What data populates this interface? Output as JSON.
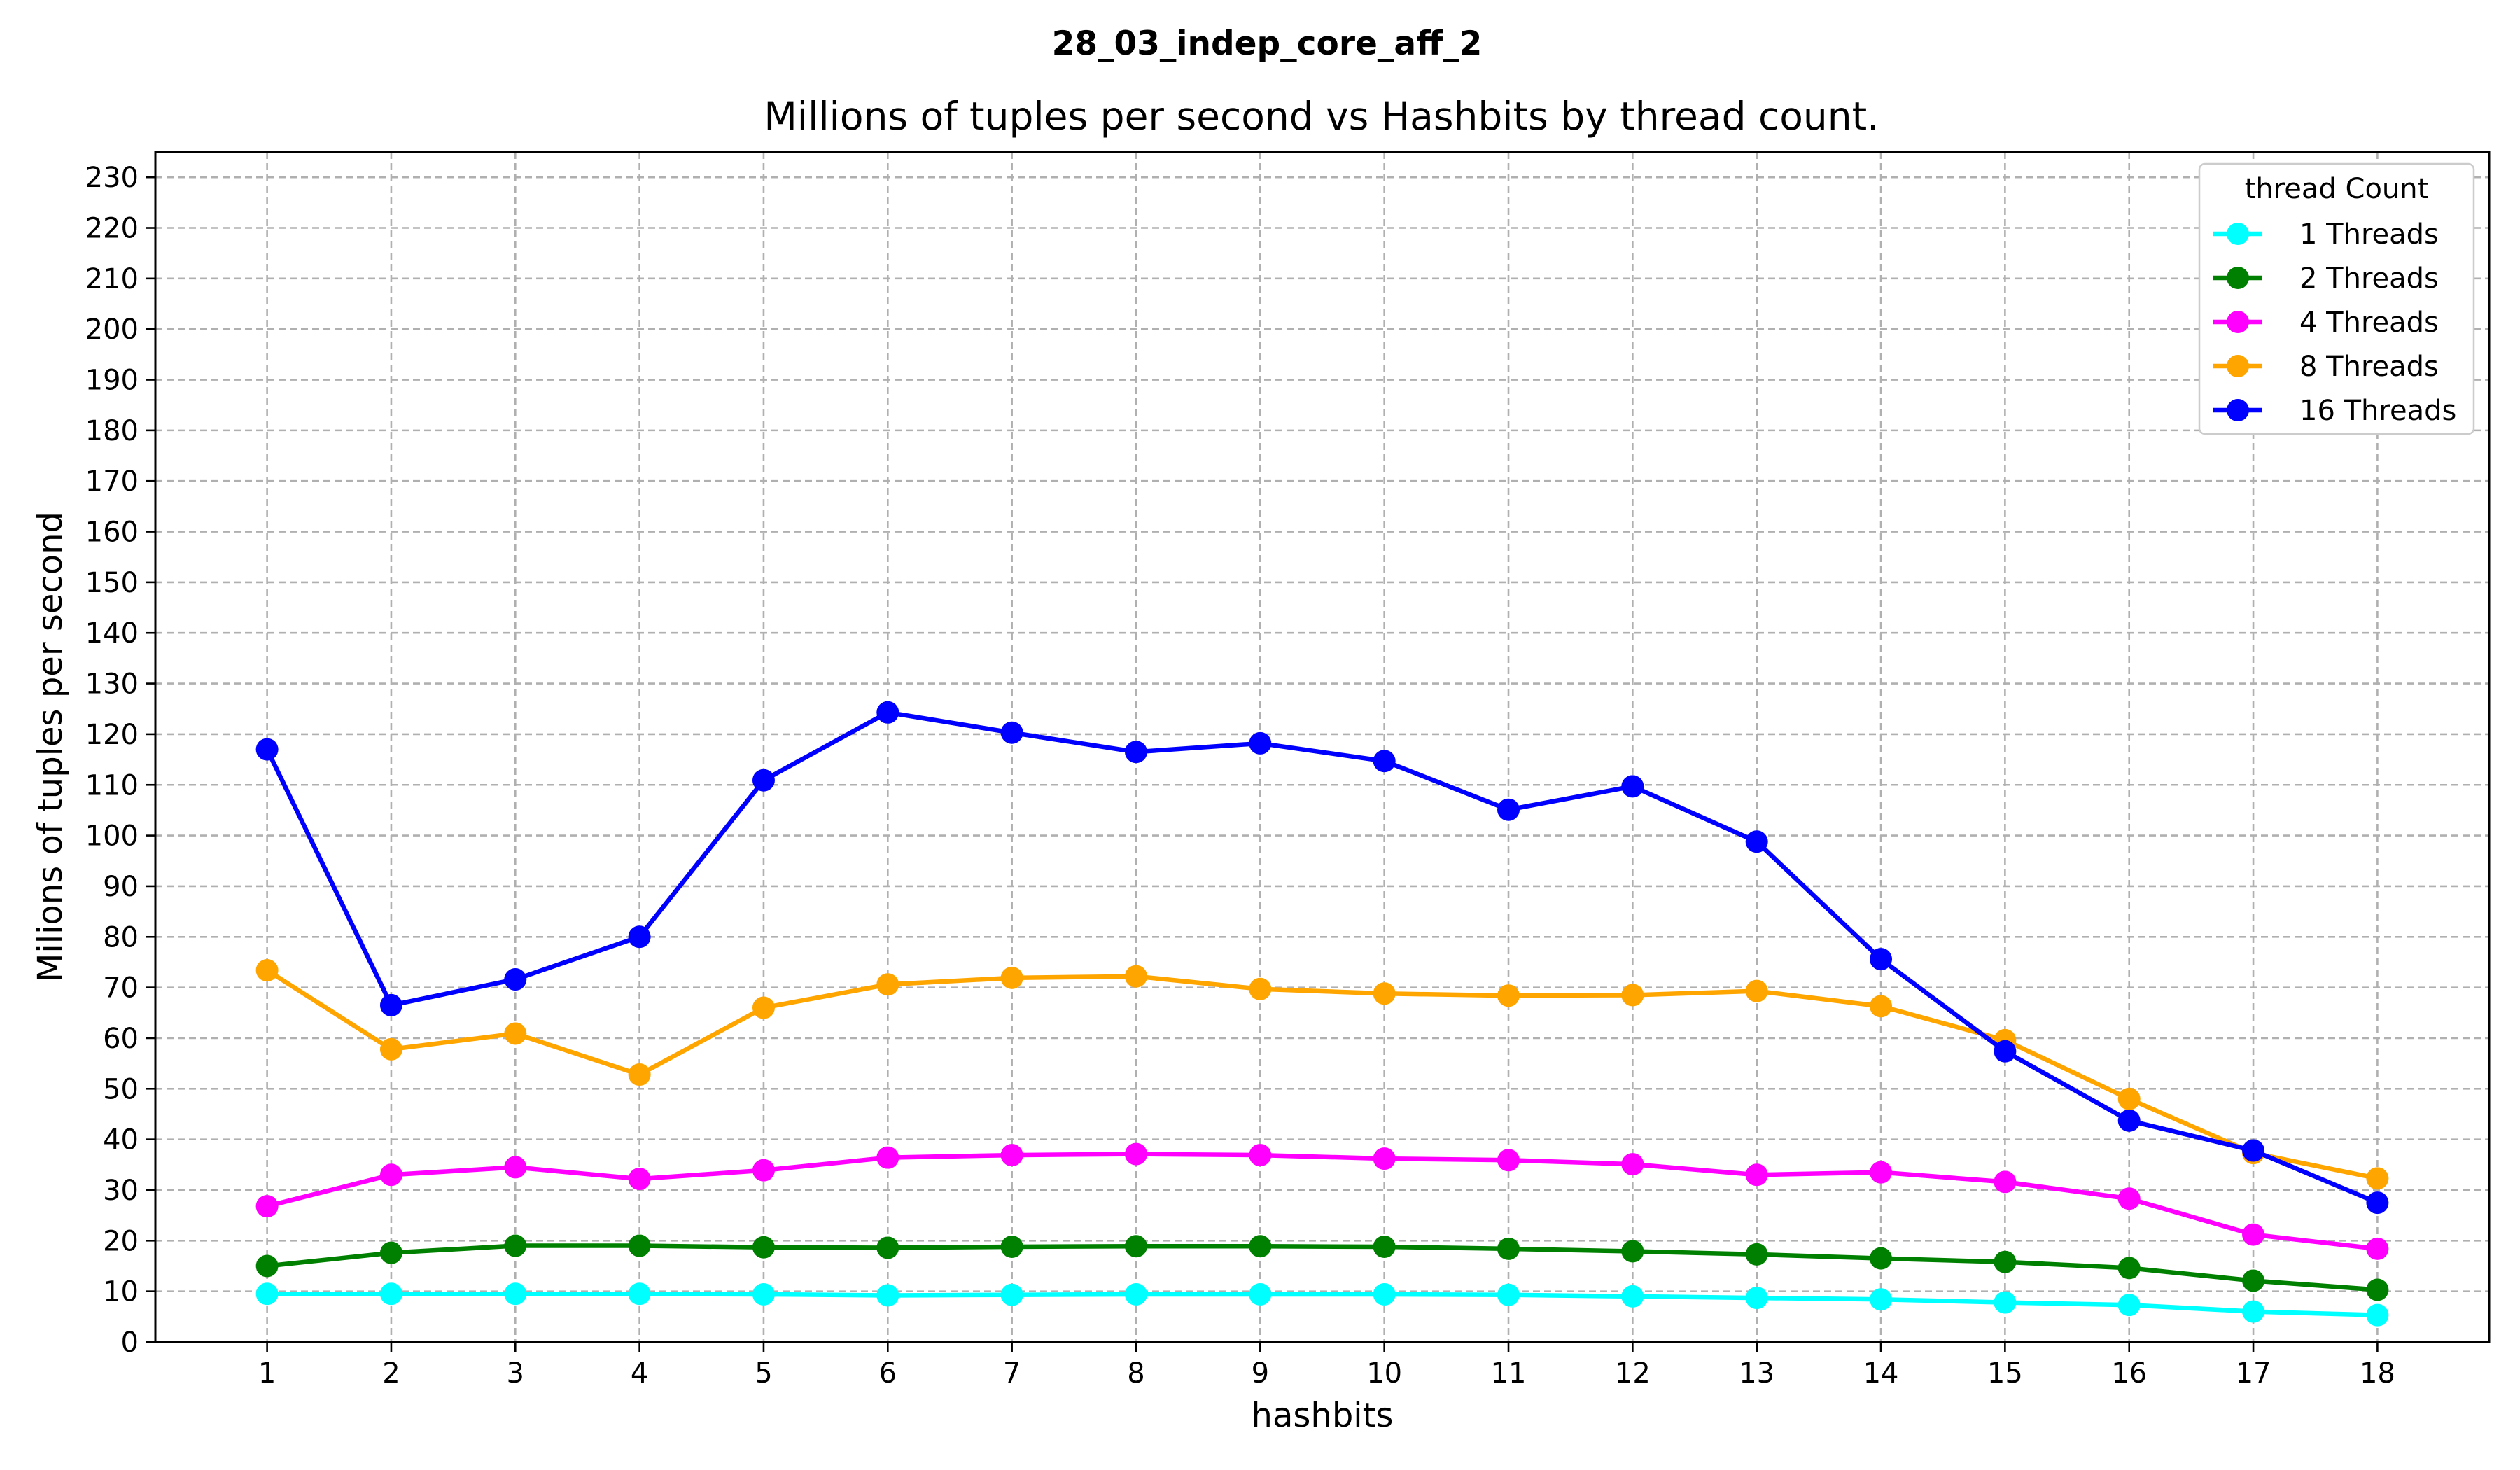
{
  "figure_title": "28_03_indep_core_aff_2",
  "chart_data": {
    "type": "line",
    "title": "Millions of tuples per second vs Hashbits by thread count.",
    "xlabel": "hashbits",
    "ylabel": "Milions of tuples per second",
    "x": [
      1,
      2,
      3,
      4,
      5,
      6,
      7,
      8,
      9,
      10,
      11,
      12,
      13,
      14,
      15,
      16,
      17,
      18
    ],
    "xlim": [
      0.1,
      18.9
    ],
    "ylim": [
      0,
      235
    ],
    "yticks": [
      0,
      10,
      20,
      30,
      40,
      50,
      60,
      70,
      80,
      90,
      100,
      110,
      120,
      130,
      140,
      150,
      160,
      170,
      180,
      190,
      200,
      210,
      220,
      230
    ],
    "grid": true,
    "legend": {
      "title": "thread Count",
      "position": "top-right"
    },
    "series": [
      {
        "name": "1 Threads",
        "color": "#00ffff",
        "values": [
          9.5,
          9.5,
          9.5,
          9.5,
          9.4,
          9.2,
          9.3,
          9.4,
          9.4,
          9.4,
          9.3,
          9.0,
          8.7,
          8.4,
          7.8,
          7.3,
          6.0,
          5.3
        ]
      },
      {
        "name": "2 Threads",
        "color": "#008000",
        "values": [
          15.0,
          17.6,
          19.0,
          19.0,
          18.7,
          18.6,
          18.8,
          18.9,
          18.9,
          18.8,
          18.4,
          17.9,
          17.3,
          16.5,
          15.8,
          14.6,
          12.1,
          10.3
        ]
      },
      {
        "name": "4 Threads",
        "color": "#ff00ff",
        "values": [
          26.8,
          33.0,
          34.5,
          32.2,
          33.9,
          36.4,
          36.9,
          37.1,
          36.9,
          36.2,
          35.9,
          35.1,
          33.0,
          33.5,
          31.6,
          28.3,
          21.2,
          18.4
        ]
      },
      {
        "name": "8 Threads",
        "color": "#ffa500",
        "values": [
          73.4,
          57.8,
          60.9,
          52.8,
          66.0,
          70.6,
          71.9,
          72.2,
          69.7,
          68.8,
          68.4,
          68.5,
          69.3,
          66.3,
          59.6,
          48.0,
          37.3,
          32.3
        ]
      },
      {
        "name": "16 Threads",
        "color": "#0000ff",
        "values": [
          117.0,
          66.5,
          71.6,
          80.0,
          110.9,
          124.3,
          120.3,
          116.5,
          118.2,
          114.7,
          105.1,
          109.7,
          98.8,
          75.6,
          57.4,
          43.7,
          37.8,
          27.5
        ]
      }
    ]
  }
}
